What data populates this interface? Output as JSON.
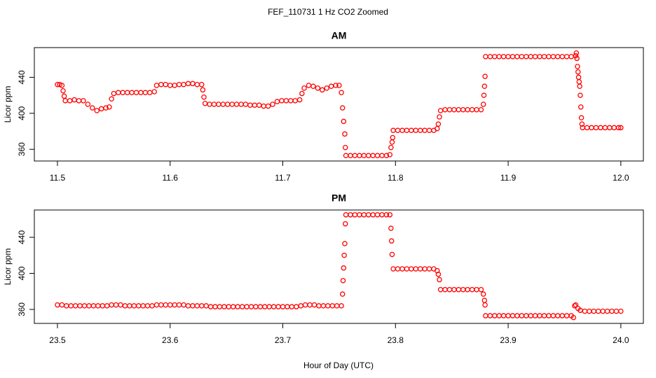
{
  "title": "FEF_110731  1 Hz CO2 Zoomed",
  "xlabel": "Hour of Day (UTC)",
  "chart_data": [
    {
      "type": "scatter",
      "title": "AM",
      "ylabel": "Licor ppm",
      "color": "#ff0000",
      "xlim": [
        11.4795,
        12.02
      ],
      "ylim": [
        347,
        473
      ],
      "xticks": [
        11.5,
        11.6,
        11.7,
        11.8,
        11.9,
        {
          "value": 12,
          "label": "12.0"
        }
      ],
      "yticks": [
        360,
        400,
        440
      ],
      "x": [
        11.5,
        11.502,
        11.504,
        11.505,
        11.506,
        11.507,
        11.511,
        11.515,
        11.519,
        11.523,
        11.527,
        11.531,
        11.535,
        11.539,
        11.543,
        11.546,
        11.548,
        11.55,
        11.554,
        11.558,
        11.562,
        11.566,
        11.57,
        11.574,
        11.578,
        11.582,
        11.586,
        11.588,
        11.592,
        11.596,
        11.6,
        11.604,
        11.608,
        11.612,
        11.616,
        11.62,
        11.624,
        11.628,
        11.629,
        11.63,
        11.631,
        11.635,
        11.639,
        11.643,
        11.647,
        11.651,
        11.655,
        11.659,
        11.663,
        11.667,
        11.671,
        11.675,
        11.679,
        11.683,
        11.687,
        11.691,
        11.695,
        11.699,
        11.703,
        11.707,
        11.711,
        11.715,
        11.717,
        11.719,
        11.723,
        11.727,
        11.731,
        11.735,
        11.739,
        11.743,
        11.747,
        11.75,
        11.752,
        11.753,
        11.754,
        11.755,
        11.7555,
        11.756,
        11.76,
        11.764,
        11.768,
        11.772,
        11.776,
        11.78,
        11.784,
        11.788,
        11.792,
        11.795,
        11.796,
        11.797,
        11.7975,
        11.798,
        11.802,
        11.806,
        11.81,
        11.814,
        11.818,
        11.822,
        11.826,
        11.83,
        11.834,
        11.837,
        11.838,
        11.839,
        11.84,
        11.844,
        11.848,
        11.852,
        11.856,
        11.86,
        11.864,
        11.868,
        11.872,
        11.876,
        11.878,
        11.8785,
        11.879,
        11.8795,
        11.88,
        11.884,
        11.888,
        11.892,
        11.896,
        11.9,
        11.904,
        11.908,
        11.912,
        11.916,
        11.92,
        11.924,
        11.928,
        11.932,
        11.936,
        11.94,
        11.944,
        11.948,
        11.952,
        11.956,
        11.96,
        11.9605,
        11.961,
        11.9615,
        11.962,
        11.9625,
        11.963,
        11.9635,
        11.964,
        11.9645,
        11.965,
        11.9655,
        11.966,
        11.97,
        11.974,
        11.978,
        11.982,
        11.986,
        11.99,
        11.994,
        11.998,
        12.0
      ],
      "values": [
        432,
        432,
        431,
        425,
        419,
        414,
        414,
        415,
        414,
        414,
        410,
        406,
        403,
        405,
        406,
        407,
        416,
        422,
        423,
        423,
        423,
        423,
        423,
        423,
        423,
        423,
        424,
        431,
        432,
        432,
        431,
        431,
        432,
        432,
        433,
        433,
        432,
        432,
        426,
        418,
        411,
        410,
        410,
        410,
        410,
        410,
        410,
        410,
        410,
        410,
        409,
        409,
        409,
        408,
        408,
        410,
        413,
        414,
        414,
        414,
        414,
        415,
        422,
        428,
        431,
        430,
        428,
        426,
        428,
        430,
        431,
        431,
        423,
        406,
        391,
        377,
        362,
        353,
        353,
        353,
        353,
        353,
        353,
        353,
        353,
        353,
        353,
        354,
        362,
        368,
        373,
        381,
        381,
        381,
        381,
        381,
        381,
        381,
        381,
        381,
        381,
        383,
        388,
        396,
        403,
        404,
        404,
        404,
        404,
        404,
        404,
        404,
        404,
        404,
        410,
        420,
        430,
        441,
        463,
        463,
        463,
        463,
        463,
        463,
        463,
        463,
        463,
        463,
        463,
        463,
        463,
        463,
        463,
        463,
        463,
        463,
        463,
        463,
        464,
        467,
        461,
        452,
        446,
        440,
        435,
        430,
        420,
        407,
        395,
        388,
        384,
        384,
        384,
        384,
        384,
        384,
        384,
        384,
        384,
        384
      ]
    },
    {
      "type": "scatter",
      "title": "PM",
      "ylabel": "Licor ppm",
      "color": "#ff0000",
      "xlim": [
        23.4795,
        24.02
      ],
      "ylim": [
        344.5,
        470.3
      ],
      "xticks": [
        23.5,
        23.6,
        23.7,
        23.8,
        23.9,
        {
          "value": 24,
          "label": "24.0"
        }
      ],
      "yticks": [
        360,
        400,
        440
      ],
      "x": [
        23.5,
        23.504,
        23.508,
        23.512,
        23.516,
        23.52,
        23.524,
        23.528,
        23.532,
        23.536,
        23.54,
        23.544,
        23.548,
        23.552,
        23.556,
        23.56,
        23.564,
        23.568,
        23.572,
        23.576,
        23.58,
        23.584,
        23.588,
        23.592,
        23.596,
        23.6,
        23.604,
        23.608,
        23.612,
        23.616,
        23.62,
        23.624,
        23.628,
        23.632,
        23.636,
        23.64,
        23.644,
        23.648,
        23.652,
        23.656,
        23.66,
        23.664,
        23.668,
        23.672,
        23.676,
        23.68,
        23.684,
        23.688,
        23.692,
        23.696,
        23.7,
        23.704,
        23.708,
        23.712,
        23.716,
        23.72,
        23.724,
        23.728,
        23.732,
        23.736,
        23.74,
        23.744,
        23.748,
        23.752,
        23.753,
        23.7535,
        23.754,
        23.7545,
        23.755,
        23.7555,
        23.756,
        23.76,
        23.764,
        23.768,
        23.772,
        23.776,
        23.78,
        23.784,
        23.788,
        23.792,
        23.795,
        23.796,
        23.7965,
        23.797,
        23.798,
        23.802,
        23.806,
        23.81,
        23.814,
        23.818,
        23.822,
        23.826,
        23.83,
        23.834,
        23.837,
        23.838,
        23.839,
        23.84,
        23.844,
        23.848,
        23.852,
        23.856,
        23.86,
        23.864,
        23.868,
        23.872,
        23.876,
        23.878,
        23.879,
        23.8795,
        23.88,
        23.884,
        23.888,
        23.892,
        23.896,
        23.9,
        23.904,
        23.908,
        23.912,
        23.916,
        23.92,
        23.924,
        23.928,
        23.932,
        23.936,
        23.94,
        23.944,
        23.948,
        23.952,
        23.956,
        23.958,
        23.959,
        23.96,
        23.962,
        23.964,
        23.968,
        23.972,
        23.976,
        23.98,
        23.984,
        23.988,
        23.992,
        23.996,
        24.0
      ],
      "values": [
        365,
        365,
        364,
        364,
        364,
        364,
        364,
        364,
        364,
        364,
        364,
        364,
        365,
        365,
        365,
        364,
        364,
        364,
        364,
        364,
        364,
        364,
        365,
        365,
        365,
        365,
        365,
        365,
        365,
        364,
        364,
        364,
        364,
        364,
        363,
        363,
        363,
        363,
        363,
        363,
        363,
        363,
        363,
        363,
        363,
        363,
        363,
        363,
        363,
        363,
        363,
        363,
        363,
        363,
        364,
        365,
        365,
        365,
        364,
        364,
        364,
        364,
        364,
        364,
        377,
        392,
        406,
        420,
        433,
        455,
        465,
        465,
        465,
        465,
        465,
        465,
        465,
        465,
        465,
        465,
        465,
        450,
        436,
        421,
        405,
        405,
        405,
        405,
        405,
        405,
        405,
        405,
        405,
        405,
        403,
        399,
        393,
        382,
        382,
        382,
        382,
        382,
        382,
        382,
        382,
        382,
        382,
        377,
        370,
        365,
        353,
        353,
        353,
        353,
        353,
        353,
        353,
        353,
        353,
        353,
        353,
        353,
        353,
        353,
        353,
        353,
        353,
        353,
        353,
        353,
        351,
        364,
        365,
        361,
        359,
        358,
        358,
        358,
        358,
        358,
        358,
        358,
        358,
        358
      ]
    }
  ]
}
